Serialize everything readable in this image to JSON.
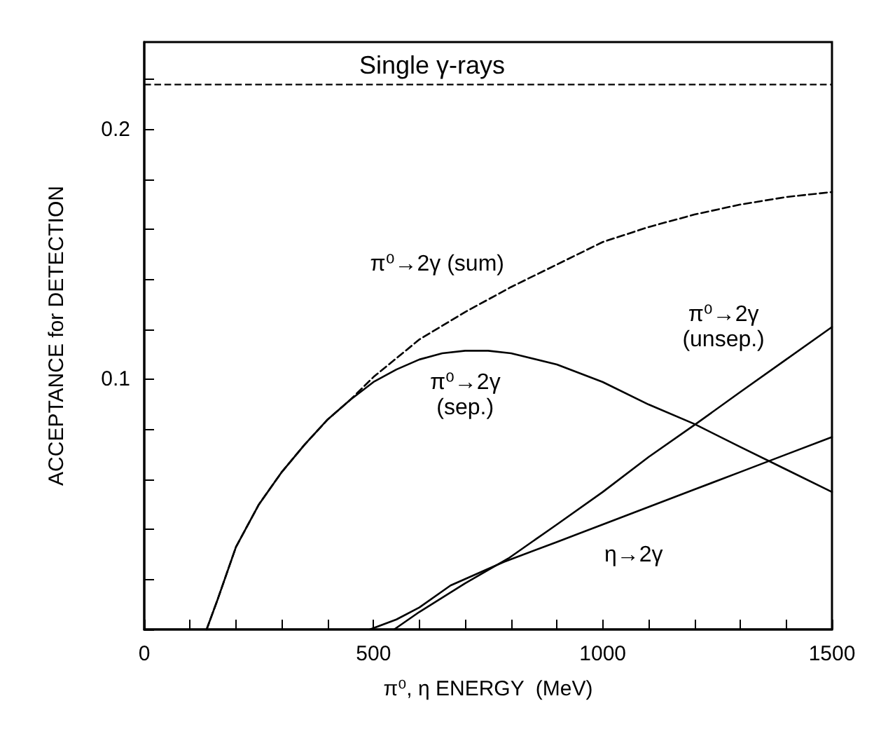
{
  "chart_data": {
    "type": "line",
    "xlabel": "π⁰, η ENERGY  (MeV)",
    "ylabel": "ACCEPTANCE for DETECTION",
    "xlim": [
      0,
      1500
    ],
    "ylim": [
      0,
      0.235
    ],
    "xticks": [
      0,
      {
        "value": 100,
        "label": null
      },
      {
        "value": 200,
        "label": null
      },
      {
        "value": 300,
        "label": null
      },
      {
        "value": 400,
        "label": null
      },
      500,
      {
        "value": 600,
        "label": null
      },
      {
        "value": 700,
        "label": null
      },
      {
        "value": 800,
        "label": null
      },
      {
        "value": 900,
        "label": null
      },
      1000,
      {
        "value": 1100,
        "label": null
      },
      {
        "value": 1200,
        "label": null
      },
      {
        "value": 1300,
        "label": null
      },
      {
        "value": 1400,
        "label": null
      },
      1500
    ],
    "yticks": [
      {
        "value": 0,
        "label": null
      },
      {
        "value": 0.02,
        "label": null
      },
      {
        "value": 0.04,
        "label": null
      },
      {
        "value": 0.06,
        "label": null
      },
      {
        "value": 0.08,
        "label": null
      },
      0.1,
      {
        "value": 0.12,
        "label": null
      },
      {
        "value": 0.14,
        "label": null
      },
      {
        "value": 0.16,
        "label": null
      },
      {
        "value": 0.18,
        "label": null
      },
      0.2,
      {
        "value": 0.22,
        "label": null
      }
    ],
    "series": [
      {
        "name": "π⁰→2γ (sum)",
        "color": "#000000",
        "line_style": "dashed",
        "x": [
          136,
          160,
          200,
          250,
          300,
          350,
          400,
          450,
          500,
          600,
          700,
          800,
          900,
          1000,
          1100,
          1200,
          1300,
          1400,
          1500
        ],
        "values": [
          0,
          0.012,
          0.033,
          0.05,
          0.063,
          0.074,
          0.084,
          0.092,
          0.101,
          0.116,
          0.127,
          0.137,
          0.146,
          0.155,
          0.161,
          0.166,
          0.17,
          0.173,
          0.175
        ]
      },
      {
        "name": "π⁰→2γ\n(sep.)",
        "color": "#000000",
        "line_style": "solid",
        "x": [
          136,
          160,
          200,
          250,
          300,
          350,
          400,
          450,
          500,
          550,
          600,
          650,
          700,
          750,
          800,
          900,
          1000,
          1100,
          1200,
          1300,
          1400,
          1500
        ],
        "values": [
          0,
          0.012,
          0.033,
          0.05,
          0.063,
          0.074,
          0.084,
          0.092,
          0.099,
          0.104,
          0.108,
          0.1105,
          0.1115,
          0.1115,
          0.1105,
          0.106,
          0.099,
          0.09,
          0.0822,
          0.073,
          0.064,
          0.055
        ]
      },
      {
        "name": "π⁰→2γ\n(unsep.)",
        "color": "#000000",
        "line_style": "solid",
        "x": [
          545,
          600,
          700,
          794,
          900,
          1000,
          1100,
          1203,
          1300,
          1400,
          1500
        ],
        "values": [
          0,
          0.007,
          0.0185,
          0.0284,
          0.042,
          0.055,
          0.069,
          0.0822,
          0.095,
          0.108,
          0.121
        ]
      },
      {
        "name": "η→2γ",
        "color": "#000000",
        "line_style": "solid",
        "x": [
          492,
          550,
          600,
          668,
          784,
          900,
          1000,
          1100,
          1200,
          1300,
          1400,
          1500
        ],
        "values": [
          0,
          0.004,
          0.0088,
          0.0176,
          0.027,
          0.035,
          0.042,
          0.049,
          0.056,
          0.063,
          0.07,
          0.077
        ]
      }
    ],
    "ref_lines": [
      {
        "axis": "y",
        "value": 0.218,
        "label": "Single γ-rays",
        "line_style": "dashed",
        "color": "#000000"
      }
    ],
    "marker": "none"
  }
}
